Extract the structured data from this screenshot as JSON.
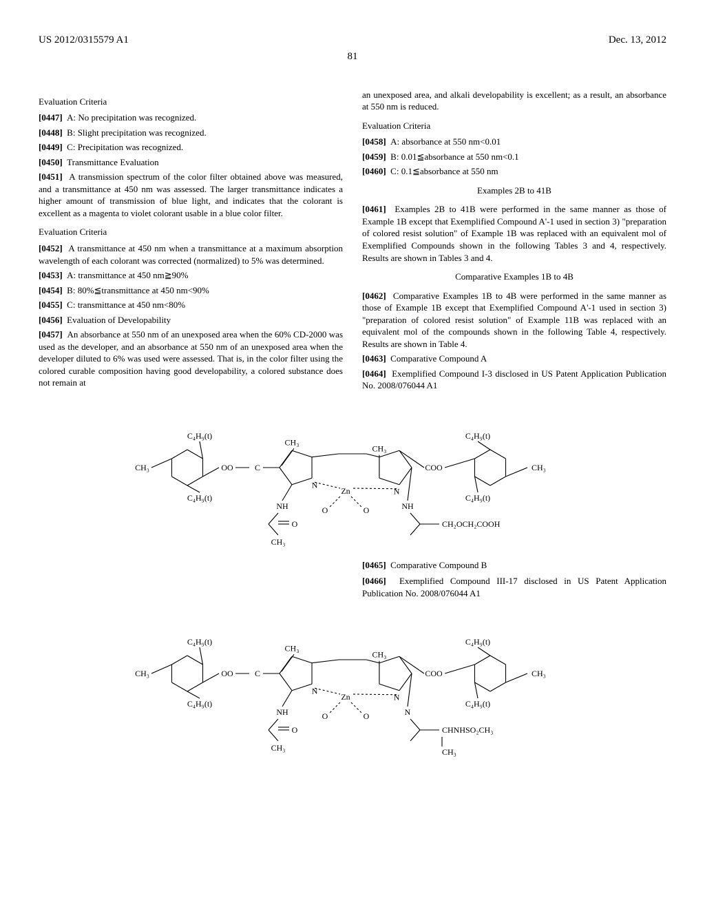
{
  "header": {
    "left": "US 2012/0315579 A1",
    "right": "Dec. 13, 2012"
  },
  "page_number": "81",
  "col1": {
    "eval_heading1": "Evaluation Criteria",
    "p0447": {
      "num": "[0447]",
      "text": "A: No precipitation was recognized."
    },
    "p0448": {
      "num": "[0448]",
      "text": "B: Slight precipitation was recognized."
    },
    "p0449": {
      "num": "[0449]",
      "text": "C: Precipitation was recognized."
    },
    "p0450": {
      "num": "[0450]",
      "text": "Transmittance Evaluation"
    },
    "p0451": {
      "num": "[0451]",
      "text": "A transmission spectrum of the color filter obtained above was measured, and a transmittance at 450 nm was assessed. The larger transmittance indicates a higher amount of transmission of blue light, and indicates that the colorant is excellent as a magenta to violet colorant usable in a blue color filter."
    },
    "eval_heading2": "Evaluation Criteria",
    "p0452": {
      "num": "[0452]",
      "text": "A transmittance at 450 nm when a transmittance at a maximum absorption wavelength of each colorant was corrected (normalized) to 5% was determined."
    },
    "p0453": {
      "num": "[0453]",
      "text": "A: transmittance at 450 nm≧90%"
    },
    "p0454": {
      "num": "[0454]",
      "text": "B: 80%≦transmittance at 450 nm<90%"
    },
    "p0455": {
      "num": "[0455]",
      "text": "C: transmittance at 450 nm<80%"
    },
    "p0456": {
      "num": "[0456]",
      "text": "Evaluation of Developability"
    },
    "p0457": {
      "num": "[0457]",
      "text": "An absorbance at 550 nm of an unexposed area when the 60% CD-2000 was used as the developer, and an absorbance at 550 nm of an unexposed area when the developer diluted to 6% was used were assessed. That is, in the color filter using the colored curable composition having good developability, a colored substance does not remain at"
    }
  },
  "col2": {
    "lead": "an unexposed area, and alkali developability is excellent; as a result, an absorbance at 550 nm is reduced.",
    "eval_heading": "Evaluation Criteria",
    "p0458": {
      "num": "[0458]",
      "text": "A: absorbance at 550 nm<0.01"
    },
    "p0459": {
      "num": "[0459]",
      "text": "B: 0.01≦absorbance at 550 nm<0.1"
    },
    "p0460": {
      "num": "[0460]",
      "text": "C: 0.1≦absorbance at 550 nm"
    },
    "examples_heading": "Examples 2B to 41B",
    "p0461": {
      "num": "[0461]",
      "text": "Examples 2B to 41B were performed in the same manner as those of Example 1B except that Exemplified Compound A'-1 used in section 3) \"preparation of colored resist solution\" of Example 1B was replaced with an equivalent mol of Exemplified Compounds shown in the following Tables 3 and 4, respectively. Results are shown in Tables 3 and 4."
    },
    "comp_heading": "Comparative Examples 1B to 4B",
    "p0462": {
      "num": "[0462]",
      "text": "Comparative Examples 1B to 4B were performed in the same manner as those of Example 1B except that Exemplified Compound A'-1 used in section 3) \"preparation of colored resist solution\" of Example 11B was replaced with an equivalent mol of the compounds shown in the following Table 4, respectively. Results are shown in Table 4."
    },
    "p0463": {
      "num": "[0463]",
      "text": "Comparative Compound A"
    },
    "p0464": {
      "num": "[0464]",
      "text": "Exemplified Compound I-3 disclosed in US Patent Application Publication No. 2008/076044 A1"
    }
  },
  "tail": {
    "p0465": {
      "num": "[0465]",
      "text": "Comparative Compound B"
    },
    "p0466": {
      "num": "[0466]",
      "text": "Exemplified Compound III-17 disclosed in US Patent Application Publication No. 2008/076044 A1"
    }
  },
  "chem": {
    "labels": {
      "c4h9t": "C₄H₉(t)",
      "ch3": "CH₃",
      "oo": "OO",
      "c": "C",
      "coo": "COO",
      "n": "N",
      "nh": "NH",
      "zn": "Zn",
      "o": "O",
      "ch2och2cooh": "CH₂OCH₂COOH",
      "chnhso2ch3": "CHNHSO₂CH₃"
    },
    "style": {
      "stroke": "#000000",
      "stroke_width": 1.1,
      "font_family": "Times New Roman, Times, serif",
      "font_size": 12,
      "dash": "3,3"
    }
  }
}
